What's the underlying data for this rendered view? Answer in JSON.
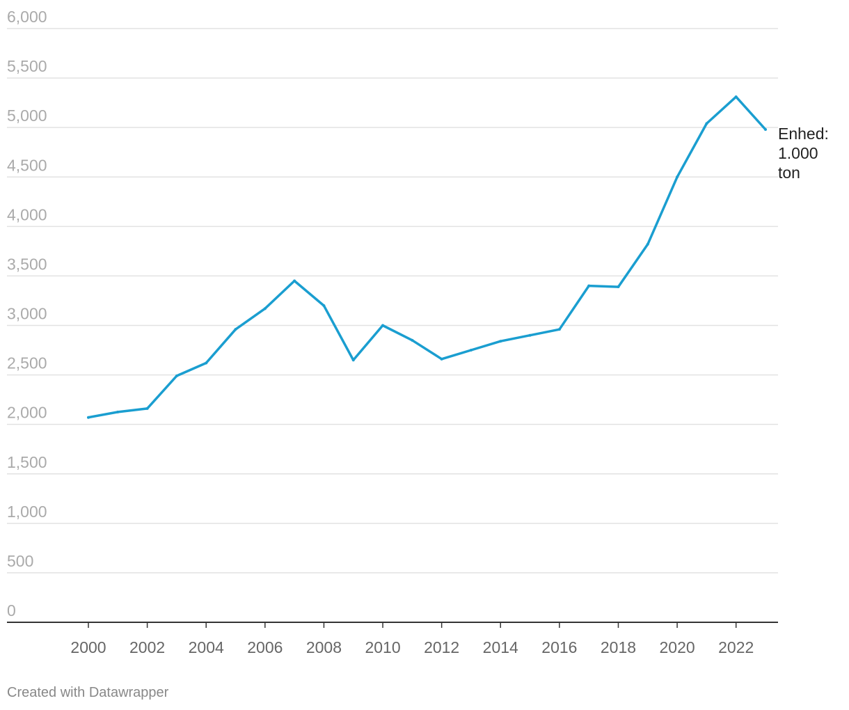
{
  "chart_data": {
    "type": "line",
    "x": [
      2000,
      2001,
      2002,
      2003,
      2004,
      2005,
      2006,
      2007,
      2008,
      2009,
      2010,
      2011,
      2012,
      2013,
      2014,
      2015,
      2016,
      2017,
      2018,
      2019,
      2020,
      2021,
      2022,
      2023
    ],
    "series": [
      {
        "values": [
          2070,
          2125,
          2160,
          2490,
          2620,
          2960,
          3170,
          3450,
          3200,
          2650,
          3000,
          2850,
          2660,
          2750,
          2840,
          2900,
          2960,
          3400,
          3390,
          3820,
          4500,
          5040,
          5310,
          4980
        ],
        "color": "#1a9ed0"
      }
    ],
    "ylim": [
      0,
      6000
    ],
    "yticks": [
      0,
      500,
      1000,
      1500,
      2000,
      2500,
      3000,
      3500,
      4000,
      4500,
      5000,
      5500,
      6000
    ],
    "ytick_labels": [
      "0",
      "500",
      "1,000",
      "1,500",
      "2,000",
      "2,500",
      "3,000",
      "3,500",
      "4,000",
      "4,500",
      "5,000",
      "5,500",
      "6,000"
    ],
    "xticks": [
      2000,
      2002,
      2004,
      2006,
      2008,
      2010,
      2012,
      2014,
      2016,
      2018,
      2020,
      2022
    ],
    "xtick_labels": [
      "2000",
      "2002",
      "2004",
      "2006",
      "2008",
      "2010",
      "2012",
      "2014",
      "2016",
      "2018",
      "2020",
      "2022"
    ],
    "annotation": [
      "Enhed:",
      "1.000",
      "ton"
    ],
    "grid": true,
    "gridline_color": "#e2e2e2",
    "axis_color": "#333333"
  },
  "footer": "Created with Datawrapper"
}
